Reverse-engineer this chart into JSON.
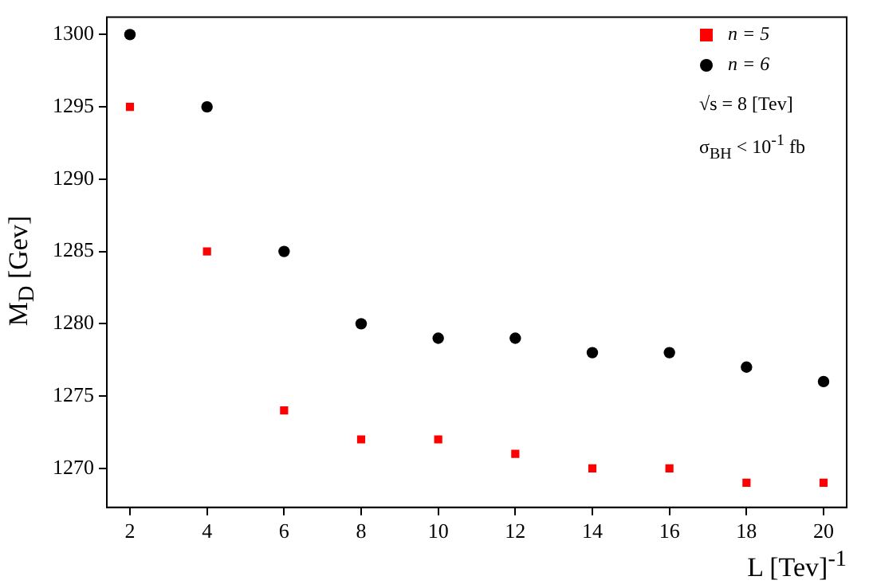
{
  "chart_data": {
    "type": "scatter",
    "xlabel": "L [Tev]$^{-1}$",
    "ylabel": "M$_{D}$ [Gev]",
    "x": [
      2,
      4,
      6,
      8,
      10,
      12,
      14,
      16,
      18,
      20
    ],
    "series": [
      {
        "name": "n = 5",
        "color": "#ff0000",
        "marker": "square",
        "values": [
          1295,
          1285,
          1274,
          1272,
          1272,
          1271,
          1270,
          1270,
          1269,
          1269
        ]
      },
      {
        "name": "n = 6",
        "color": "#000000",
        "marker": "circle",
        "values": [
          1300,
          1295,
          1285,
          1280,
          1279,
          1279,
          1278,
          1278,
          1277,
          1276
        ]
      }
    ],
    "xlim": [
      1.4,
      20.6
    ],
    "xticks": [
      2,
      4,
      6,
      8,
      10,
      12,
      14,
      16,
      18,
      20
    ],
    "ylim": [
      1267.3,
      1301.2
    ],
    "yticks": [
      1270,
      1275,
      1280,
      1285,
      1290,
      1295,
      1300
    ],
    "grid": false,
    "legend": "top right",
    "annotations": [
      "√s = 8 [Tev]",
      "σ$_{BH}$ < 10$^{-1}$ fb"
    ]
  }
}
